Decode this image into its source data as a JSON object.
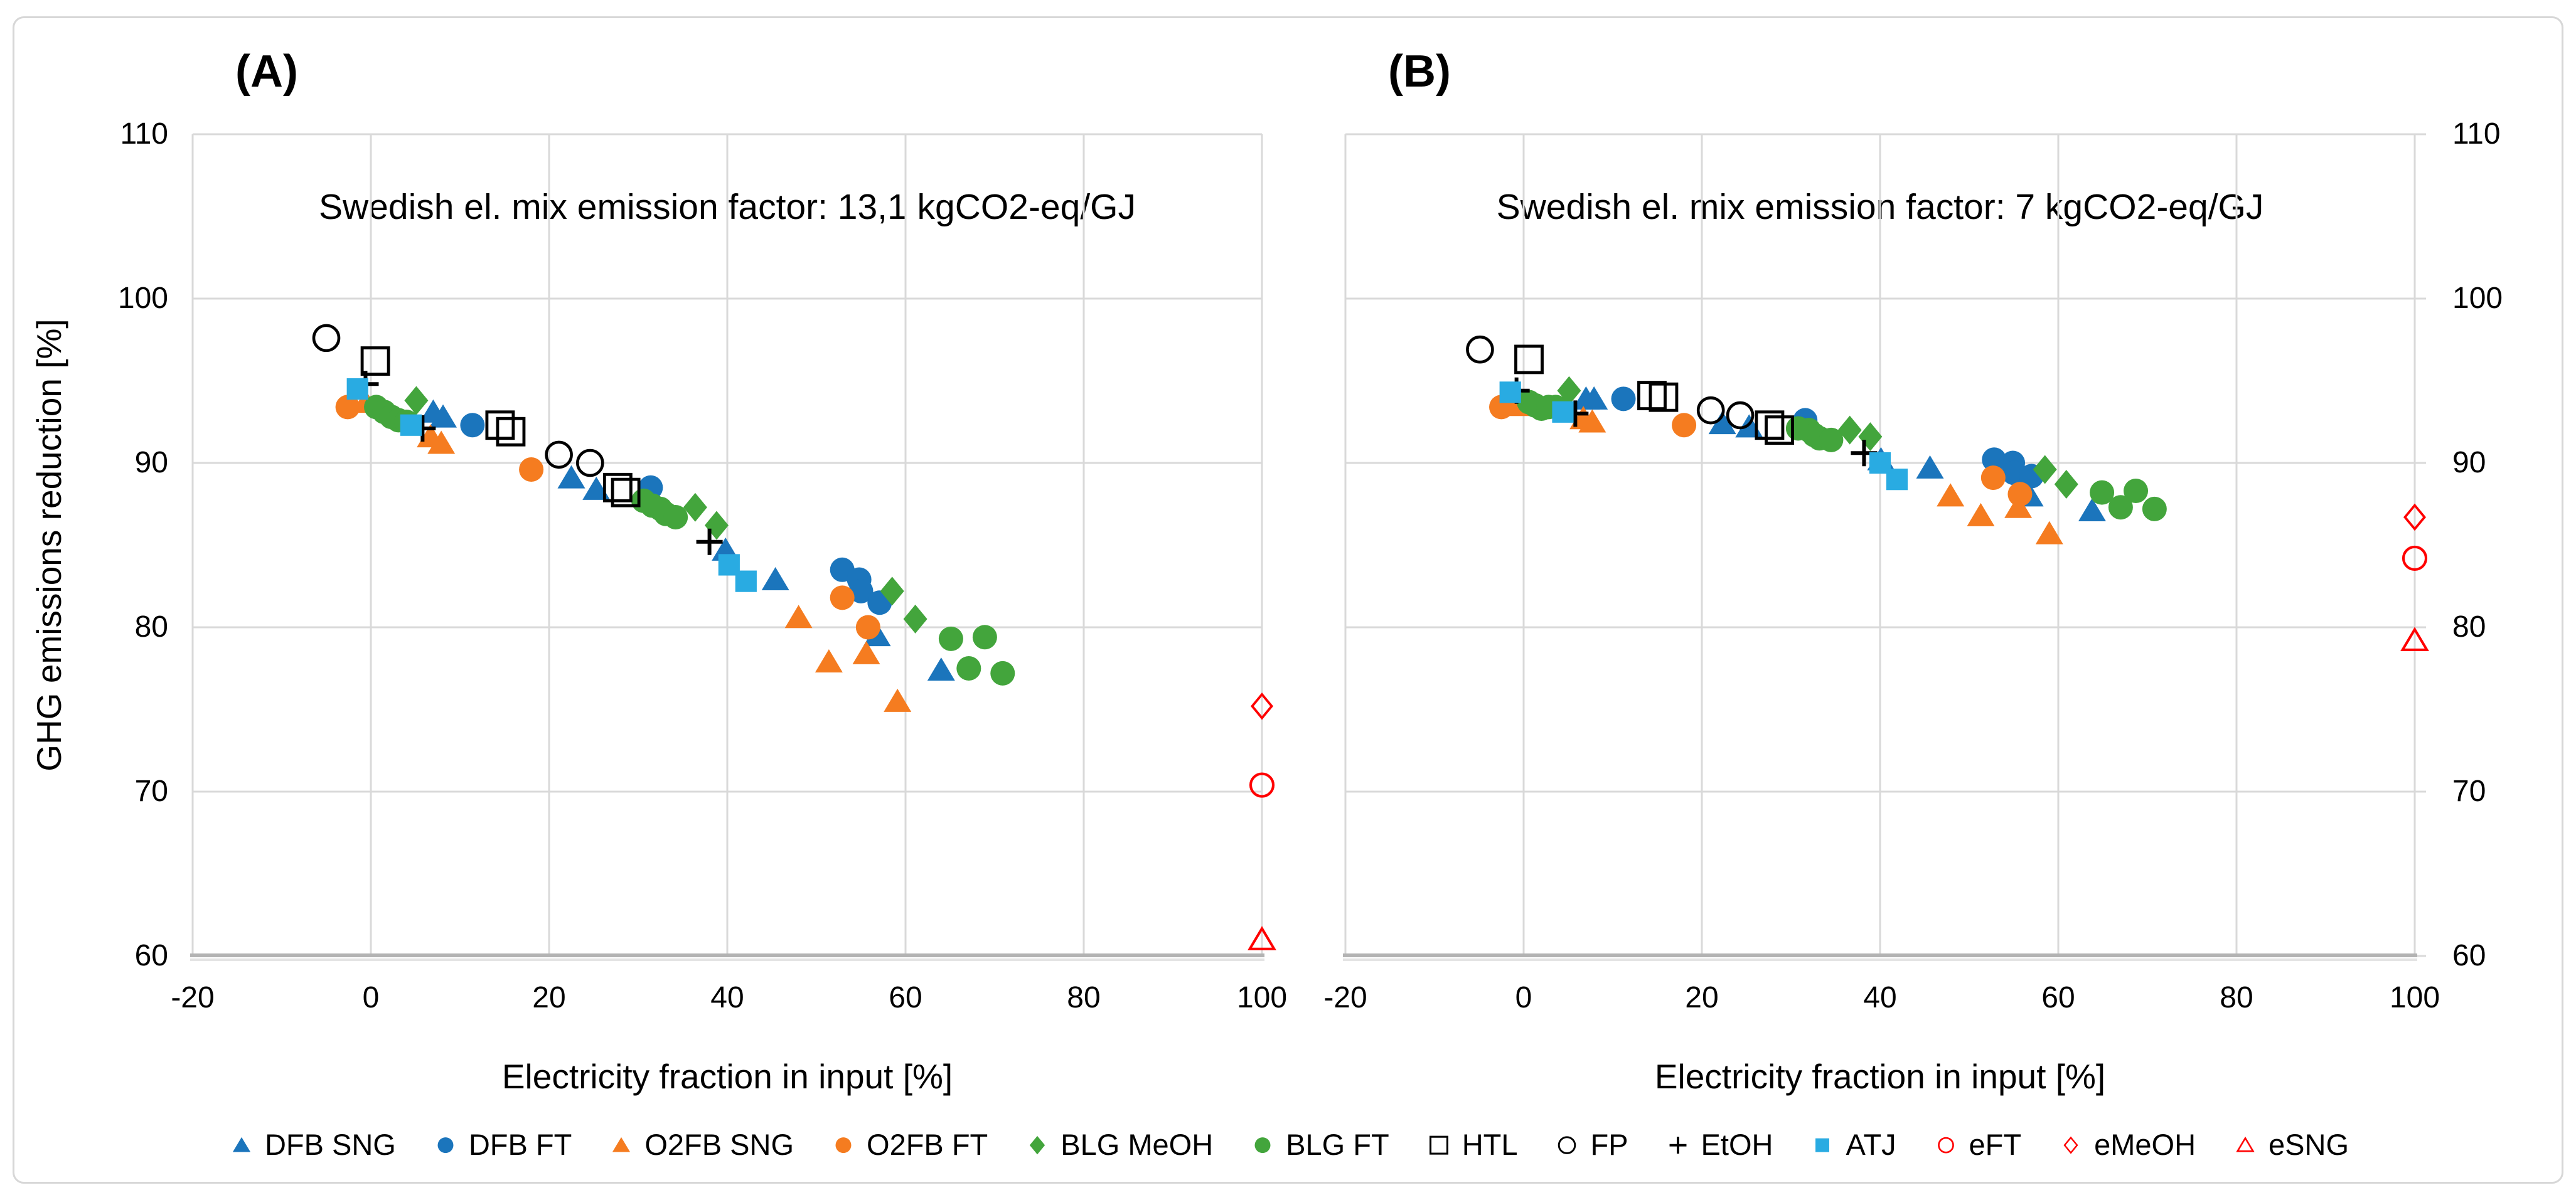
{
  "figure": {
    "background": "#ffffff",
    "border_color": "#d7d7d7",
    "gridline_color": "#d9d9d9",
    "axis_line_color": "#b3b3b3"
  },
  "legend": {
    "items": [
      {
        "label": "DFB SNG",
        "shape": "triangle",
        "filled": true,
        "color": "#1b75bc",
        "size": 1
      },
      {
        "label": "DFB FT",
        "shape": "circle",
        "filled": true,
        "color": "#1b75bc",
        "size": 1
      },
      {
        "label": "O2FB SNG",
        "shape": "triangle",
        "filled": true,
        "color": "#f57c20",
        "size": 1
      },
      {
        "label": "O2FB FT",
        "shape": "circle",
        "filled": true,
        "color": "#f57c20",
        "size": 1
      },
      {
        "label": "BLG MeOH",
        "shape": "diamond",
        "filled": true,
        "color": "#43a53c",
        "size": 1
      },
      {
        "label": "BLG FT",
        "shape": "circle",
        "filled": true,
        "color": "#43a53c",
        "size": 1
      },
      {
        "label": "HTL",
        "shape": "square",
        "filled": false,
        "color": "#000000",
        "size": 1.05
      },
      {
        "label": "FP",
        "shape": "circle",
        "filled": false,
        "color": "#000000",
        "size": 1
      },
      {
        "label": "EtOH",
        "shape": "plus",
        "filled": false,
        "color": "#000000",
        "size": 1
      },
      {
        "label": "ATJ",
        "shape": "square",
        "filled": true,
        "color": "#29abe2",
        "size": 0.95
      },
      {
        "label": "eFT",
        "shape": "circle",
        "filled": false,
        "color": "#ff0000",
        "size": 0.9
      },
      {
        "label": "eMeOH",
        "shape": "diamond",
        "filled": false,
        "color": "#ff0000",
        "size": 0.82
      },
      {
        "label": "eSNG",
        "shape": "triangle",
        "filled": false,
        "color": "#ff0000",
        "size": 0.88
      }
    ]
  },
  "chart_data": [
    {
      "type": "scatter",
      "panel_id": "plotA",
      "panel_label": "(A)",
      "title": "Swedish el. mix emission factor: 13,1 kgCO2-eq/GJ",
      "xlabel": "Electricity fraction in input [%]",
      "ylabel": "GHG emissions reduction [%]",
      "xlim": [
        -20,
        100
      ],
      "ylim": [
        60,
        110
      ],
      "x_ticks": [
        -20,
        0,
        20,
        40,
        60,
        80,
        100
      ],
      "x_tick_labels": [
        "-20",
        "0",
        "20",
        "40",
        "60",
        "80",
        "100"
      ],
      "y_ticks": [
        110,
        100,
        90,
        80,
        70,
        60
      ],
      "y_tick_labels": [
        "110",
        "100",
        "90",
        "80",
        "70",
        "60"
      ],
      "y_axis_side": "left",
      "grid": true,
      "series": [
        {
          "name": "DFB SNG",
          "points": [
            [
              7.0,
              93.1
            ],
            [
              8.1,
              92.8
            ],
            [
              22.5,
              89.1
            ],
            [
              25.3,
              88.4
            ],
            [
              39.8,
              84.7
            ],
            [
              45.4,
              82.9
            ],
            [
              56.8,
              79.5
            ],
            [
              64.0,
              77.4
            ]
          ]
        },
        {
          "name": "DFB FT",
          "points": [
            [
              11.4,
              92.3
            ],
            [
              31.4,
              88.5
            ],
            [
              52.9,
              83.5
            ],
            [
              54.8,
              82.9
            ],
            [
              55.0,
              82.2
            ],
            [
              57.1,
              81.5
            ]
          ]
        },
        {
          "name": "O2FB SNG",
          "points": [
            [
              -0.6,
              93.7
            ],
            [
              6.7,
              91.6
            ],
            [
              7.9,
              91.2
            ],
            [
              48.0,
              80.6
            ],
            [
              51.4,
              77.9
            ],
            [
              55.6,
              78.4
            ],
            [
              59.1,
              75.5
            ]
          ]
        },
        {
          "name": "O2FB FT",
          "points": [
            [
              -2.6,
              93.4
            ],
            [
              18.0,
              89.6
            ],
            [
              52.9,
              81.8
            ],
            [
              55.8,
              80.0
            ]
          ]
        },
        {
          "name": "BLG MeOH",
          "points": [
            [
              5.1,
              93.8
            ],
            [
              36.4,
              87.3
            ],
            [
              38.8,
              86.2
            ],
            [
              58.5,
              82.2
            ],
            [
              61.1,
              80.5
            ]
          ]
        },
        {
          "name": "BLG FT",
          "points": [
            [
              0.6,
              93.4
            ],
            [
              1.5,
              93.1
            ],
            [
              2.3,
              92.8
            ],
            [
              3.1,
              92.6
            ],
            [
              4.0,
              92.5
            ],
            [
              30.6,
              87.7
            ],
            [
              31.6,
              87.4
            ],
            [
              32.5,
              87.2
            ],
            [
              33.1,
              86.9
            ],
            [
              34.2,
              86.7
            ],
            [
              65.1,
              79.3
            ],
            [
              68.9,
              79.4
            ],
            [
              67.1,
              77.5
            ],
            [
              70.9,
              77.2
            ]
          ]
        },
        {
          "name": "HTL",
          "points": [
            [
              0.5,
              96.2
            ],
            [
              14.5,
              92.3
            ],
            [
              15.7,
              91.9
            ],
            [
              27.7,
              88.5
            ],
            [
              28.6,
              88.2
            ]
          ]
        },
        {
          "name": "FP",
          "points": [
            [
              -5.0,
              97.6
            ],
            [
              21.1,
              90.5
            ],
            [
              24.6,
              90.0
            ]
          ]
        },
        {
          "name": "EtOH",
          "points": [
            [
              -0.6,
              94.8
            ],
            [
              5.8,
              92.1
            ],
            [
              38.0,
              85.2
            ]
          ]
        },
        {
          "name": "ATJ",
          "points": [
            [
              -1.5,
              94.5
            ],
            [
              4.5,
              92.3
            ],
            [
              40.2,
              83.8
            ],
            [
              42.1,
              82.8
            ]
          ]
        },
        {
          "name": "eFT",
          "points": [
            [
              100,
              70.4
            ]
          ]
        },
        {
          "name": "eMeOH",
          "points": [
            [
              100,
              75.2
            ]
          ]
        },
        {
          "name": "eSNG",
          "points": [
            [
              100,
              61.0
            ]
          ]
        }
      ]
    },
    {
      "type": "scatter",
      "panel_id": "plotB",
      "panel_label": "(B)",
      "title": "Swedish el. mix emission factor: 7 kgCO2-eq/GJ",
      "xlabel": "Electricity fraction in input [%]",
      "ylabel": "GHG emissions reduction [%]",
      "xlim": [
        -20,
        100
      ],
      "ylim": [
        60,
        110
      ],
      "x_ticks": [
        -20,
        0,
        20,
        40,
        60,
        80,
        100
      ],
      "x_tick_labels": [
        "-20",
        "0",
        "20",
        "40",
        "60",
        "80",
        "100"
      ],
      "y_ticks": [
        110,
        100,
        90,
        80,
        70,
        60
      ],
      "y_tick_labels": [
        "110",
        "100",
        "90",
        "80",
        "70",
        "60"
      ],
      "y_axis_side": "right",
      "grid": true,
      "series": [
        {
          "name": "DFB SNG",
          "points": [
            [
              7.0,
              93.9
            ],
            [
              7.9,
              93.9
            ],
            [
              22.3,
              92.4
            ],
            [
              25.3,
              92.2
            ],
            [
              40.1,
              90.2
            ],
            [
              45.6,
              89.7
            ],
            [
              56.8,
              88.0
            ],
            [
              63.8,
              87.1
            ]
          ]
        },
        {
          "name": "DFB FT",
          "points": [
            [
              11.2,
              93.9
            ],
            [
              31.6,
              92.6
            ],
            [
              52.8,
              90.2
            ],
            [
              54.9,
              90.0
            ],
            [
              55.0,
              89.4
            ],
            [
              57.0,
              89.2
            ]
          ]
        },
        {
          "name": "O2FB SNG",
          "points": [
            [
              -0.6,
              93.5
            ],
            [
              6.7,
              92.7
            ],
            [
              7.7,
              92.5
            ],
            [
              47.9,
              88.0
            ],
            [
              51.3,
              86.8
            ],
            [
              55.5,
              87.3
            ],
            [
              59.0,
              85.7
            ]
          ]
        },
        {
          "name": "O2FB FT",
          "points": [
            [
              -2.5,
              93.4
            ],
            [
              18.0,
              92.3
            ],
            [
              52.7,
              89.1
            ],
            [
              55.7,
              88.1
            ]
          ]
        },
        {
          "name": "BLG MeOH",
          "points": [
            [
              5.1,
              94.4
            ],
            [
              36.6,
              92.0
            ],
            [
              38.9,
              91.6
            ],
            [
              58.5,
              89.6
            ],
            [
              60.9,
              88.7
            ]
          ]
        },
        {
          "name": "BLG FT",
          "points": [
            [
              0.6,
              93.7
            ],
            [
              1.3,
              93.5
            ],
            [
              2.0,
              93.3
            ],
            [
              2.8,
              93.4
            ],
            [
              3.6,
              93.4
            ],
            [
              30.8,
              92.1
            ],
            [
              32.0,
              92.0
            ],
            [
              32.6,
              91.7
            ],
            [
              33.2,
              91.5
            ],
            [
              34.5,
              91.4
            ],
            [
              64.9,
              88.2
            ],
            [
              68.7,
              88.3
            ],
            [
              67.0,
              87.3
            ],
            [
              70.8,
              87.2
            ]
          ]
        },
        {
          "name": "HTL",
          "points": [
            [
              0.6,
              96.3
            ],
            [
              14.4,
              94.1
            ],
            [
              15.7,
              94.0
            ],
            [
              27.6,
              92.3
            ],
            [
              28.7,
              92.0
            ]
          ]
        },
        {
          "name": "FP",
          "points": [
            [
              -4.9,
              96.9
            ],
            [
              21.0,
              93.2
            ],
            [
              24.3,
              92.9
            ]
          ]
        },
        {
          "name": "EtOH",
          "points": [
            [
              -0.8,
              94.4
            ],
            [
              5.8,
              93.0
            ],
            [
              38.2,
              90.6
            ]
          ]
        },
        {
          "name": "ATJ",
          "points": [
            [
              -1.5,
              94.3
            ],
            [
              4.4,
              93.1
            ],
            [
              40.0,
              90.0
            ],
            [
              41.9,
              89.0
            ]
          ]
        },
        {
          "name": "eFT",
          "points": [
            [
              100,
              84.2
            ]
          ]
        },
        {
          "name": "eMeOH",
          "points": [
            [
              100,
              86.7
            ]
          ]
        },
        {
          "name": "eSNG",
          "points": [
            [
              100,
              79.2
            ]
          ]
        }
      ]
    }
  ]
}
